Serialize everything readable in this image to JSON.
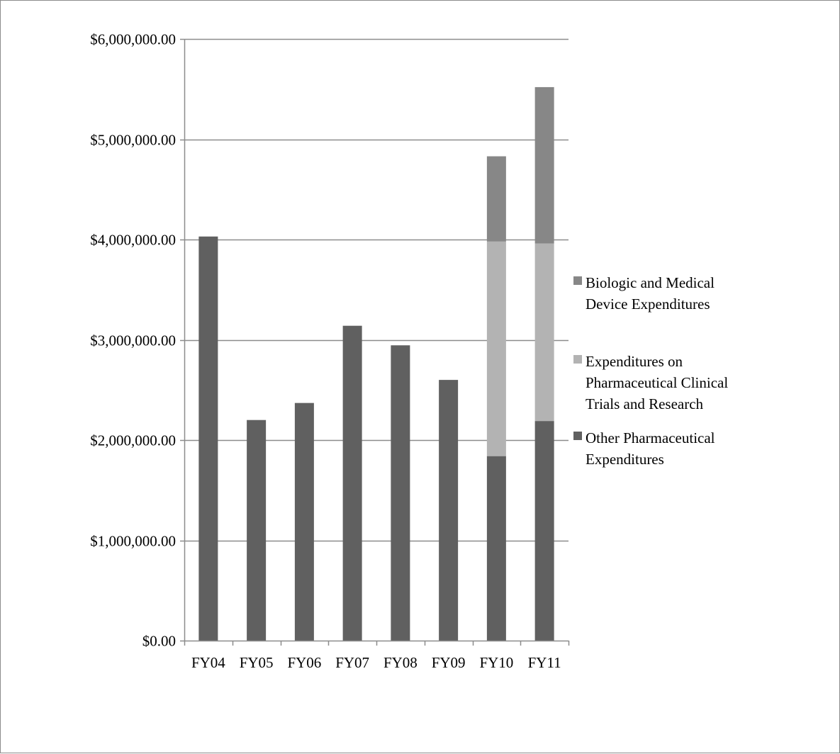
{
  "chart_data": {
    "type": "bar",
    "stacked": true,
    "categories": [
      "FY04",
      "FY05",
      "FY06",
      "FY07",
      "FY08",
      "FY09",
      "FY10",
      "FY11"
    ],
    "series": [
      {
        "name": "Other Pharmaceutical Expenditures",
        "legend_lines": [
          "Other Pharmaceutical",
          "Expenditures"
        ],
        "color": "#606060",
        "values": [
          4030000,
          2200000,
          2370000,
          3140000,
          2945000,
          2600000,
          1840000,
          2190000
        ]
      },
      {
        "name": "Expenditures on Pharmaceutical Clinical Trials and Research",
        "legend_lines": [
          "Expenditures on",
          "Pharmaceutical Clinical",
          "Trials and Research"
        ],
        "color": "#b3b3b3",
        "values": [
          0,
          0,
          0,
          0,
          0,
          0,
          2140000,
          1770000
        ]
      },
      {
        "name": "Biologic and Medical Device Expenditures",
        "legend_lines": [
          "Biologic and Medical",
          "Device Expenditures"
        ],
        "color": "#878787",
        "values": [
          0,
          0,
          0,
          0,
          0,
          0,
          850000,
          1560000
        ]
      }
    ],
    "ylim": [
      0,
      6000000
    ],
    "yticks": [
      0,
      1000000,
      2000000,
      3000000,
      4000000,
      5000000,
      6000000
    ],
    "ytick_labels": [
      "$0.00",
      "$1,000,000.00",
      "$2,000,000.00",
      "$3,000,000.00",
      "$4,000,000.00",
      "$5,000,000.00",
      "$6,000,000.00"
    ],
    "grid": true,
    "legend_position": "right",
    "title": "",
    "xlabel": "",
    "ylabel": ""
  }
}
